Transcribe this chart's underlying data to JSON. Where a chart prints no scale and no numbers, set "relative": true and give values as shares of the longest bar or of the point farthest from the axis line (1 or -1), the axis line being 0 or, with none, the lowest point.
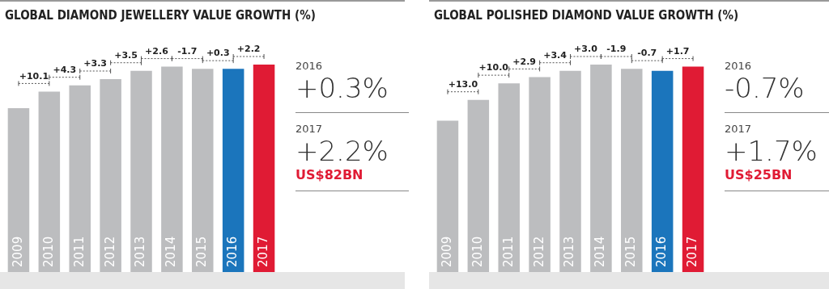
{
  "chart_data": [
    {
      "type": "bar",
      "title": "GLOBAL DIAMOND JEWELLERY VALUE GROWTH (%)",
      "relative": true,
      "categories": [
        "2009",
        "2010",
        "2011",
        "2012",
        "2013",
        "2014",
        "2015",
        "2016",
        "2017"
      ],
      "values": [
        0.79,
        0.87,
        0.9,
        0.93,
        0.97,
        0.99,
        0.98,
        0.98,
        1
      ],
      "colors": [
        "#bcbdbf",
        "#bcbdbf",
        "#bcbdbf",
        "#bcbdbf",
        "#bcbdbf",
        "#bcbdbf",
        "#bcbdbf",
        "#1b75bc",
        "#e01b34"
      ],
      "annotations": [
        "+10.1",
        "+4.3",
        "+3.3",
        "+3.5",
        "+2.6",
        "-1.7",
        "+0.3",
        "+2.2",
        "2016",
        "+0.3%",
        "2017",
        "+2.2%",
        "US$82BN"
      ]
    },
    {
      "type": "bar",
      "title": "GLOBAL POLISHED DIAMOND VALUE GROWTH (%)",
      "relative": true,
      "categories": [
        "2009",
        "2010",
        "2011",
        "2012",
        "2013",
        "2014",
        "2015",
        "2016",
        "2017"
      ],
      "values": [
        0.73,
        0.83,
        0.91,
        0.94,
        0.97,
        1,
        0.98,
        0.97,
        0.99
      ],
      "colors": [
        "#bcbdbf",
        "#bcbdbf",
        "#bcbdbf",
        "#bcbdbf",
        "#bcbdbf",
        "#bcbdbf",
        "#bcbdbf",
        "#1b75bc",
        "#e01b34"
      ],
      "annotations": [
        "+13.0",
        "+10.0",
        "+2.9",
        "+3.4",
        "+3.0",
        "-1.9",
        "-0.7",
        "+1.7",
        "2016",
        "-0.7%",
        "2017",
        "+1.7%",
        "US$25BN"
      ]
    }
  ]
}
